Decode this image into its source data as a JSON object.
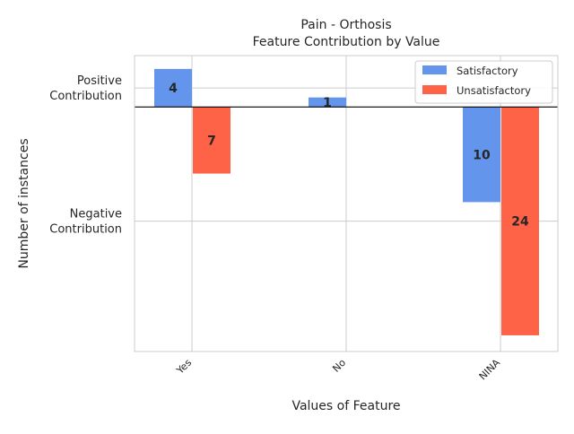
{
  "chart_data": {
    "type": "bar",
    "title_line1": "Pain - Orthosis",
    "title_line2": "Feature Contribution by Value",
    "xlabel": "Values of Feature",
    "ylabel": "Number of instances",
    "categories": [
      "Yes",
      "No",
      "NINA"
    ],
    "series": [
      {
        "name": "Satisfactory",
        "color": "#6495ED",
        "values": [
          4,
          1,
          -10
        ],
        "labels": [
          "4",
          "1",
          "10"
        ]
      },
      {
        "name": "Unsatisfactory",
        "color": "#FF6347",
        "values": [
          -7,
          0,
          -24
        ],
        "labels": [
          "7",
          "",
          "24"
        ]
      }
    ],
    "ytick_labels": [
      {
        "value": 2,
        "line1": "Positive",
        "line2": "Contribution"
      },
      {
        "value": -12,
        "line1": "Negative",
        "line2": "Contribution"
      }
    ],
    "ylim": [
      -25.7,
      5.4
    ],
    "grid": true,
    "legend_position": "top-right"
  }
}
